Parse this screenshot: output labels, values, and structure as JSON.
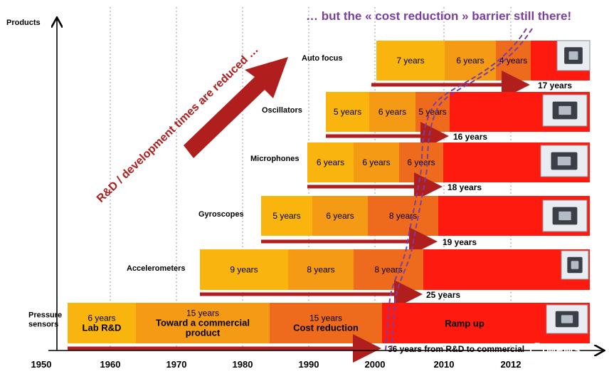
{
  "y_axis_label": "Products",
  "x_ticks": [
    "1950",
    "1960",
    "1970",
    "1980",
    "1990",
    "2000",
    "2010",
    "2012"
  ],
  "headline": "… but the « cost reduction » barrier still there!",
  "diagonal_caption": "R&D / development times are reduced …",
  "colors": {
    "phase1": "#F9B50E",
    "phase2": "#F59A14",
    "phase3": "#EE6A1C",
    "ramp": "#FF1A10",
    "arrow": "#B01E1E",
    "headline": "#7A3FA0",
    "barrier": "#7A3FA0"
  },
  "products": [
    {
      "name": "Auto focus",
      "phases": [
        "7 years",
        "6 years",
        "4 years"
      ],
      "ramp_label": "",
      "total": "17 years",
      "thumb_icon": "camera-module-icon"
    },
    {
      "name": "Oscillators",
      "phases": [
        "5 years",
        "6 years",
        "5 years"
      ],
      "ramp_label": "",
      "total": "16 years",
      "thumb_icon": "oscillator-chip-icon"
    },
    {
      "name": "Microphones",
      "phases": [
        "6 years",
        "6 years",
        "6 years"
      ],
      "ramp_label": "",
      "total": "18 years",
      "thumb_icon": "microphone-chips-icon"
    },
    {
      "name": "Gyroscopes",
      "phases": [
        "5 years",
        "6 years",
        "8 years"
      ],
      "ramp_label": "",
      "total": "19 years",
      "thumb_icon": "gyroscope-chip-icon"
    },
    {
      "name": "Accelerometers",
      "phases": [
        "9 years",
        "8 years",
        "8 years"
      ],
      "ramp_label": "",
      "total": "25 years",
      "thumb_icon": "accelerometer-chip-icon"
    },
    {
      "name": "Pressure\nsensors",
      "phases": [
        "6 years\nLab R&D",
        "15 years\nToward a commercial\nproduct",
        "15 years\nCost reduction"
      ],
      "ramp_label": "Ramp up",
      "total": "36 years from R&D to commercial",
      "thumb_icon": "pressure-sensor-chip-icon"
    }
  ],
  "watermark": "MEMS"
}
